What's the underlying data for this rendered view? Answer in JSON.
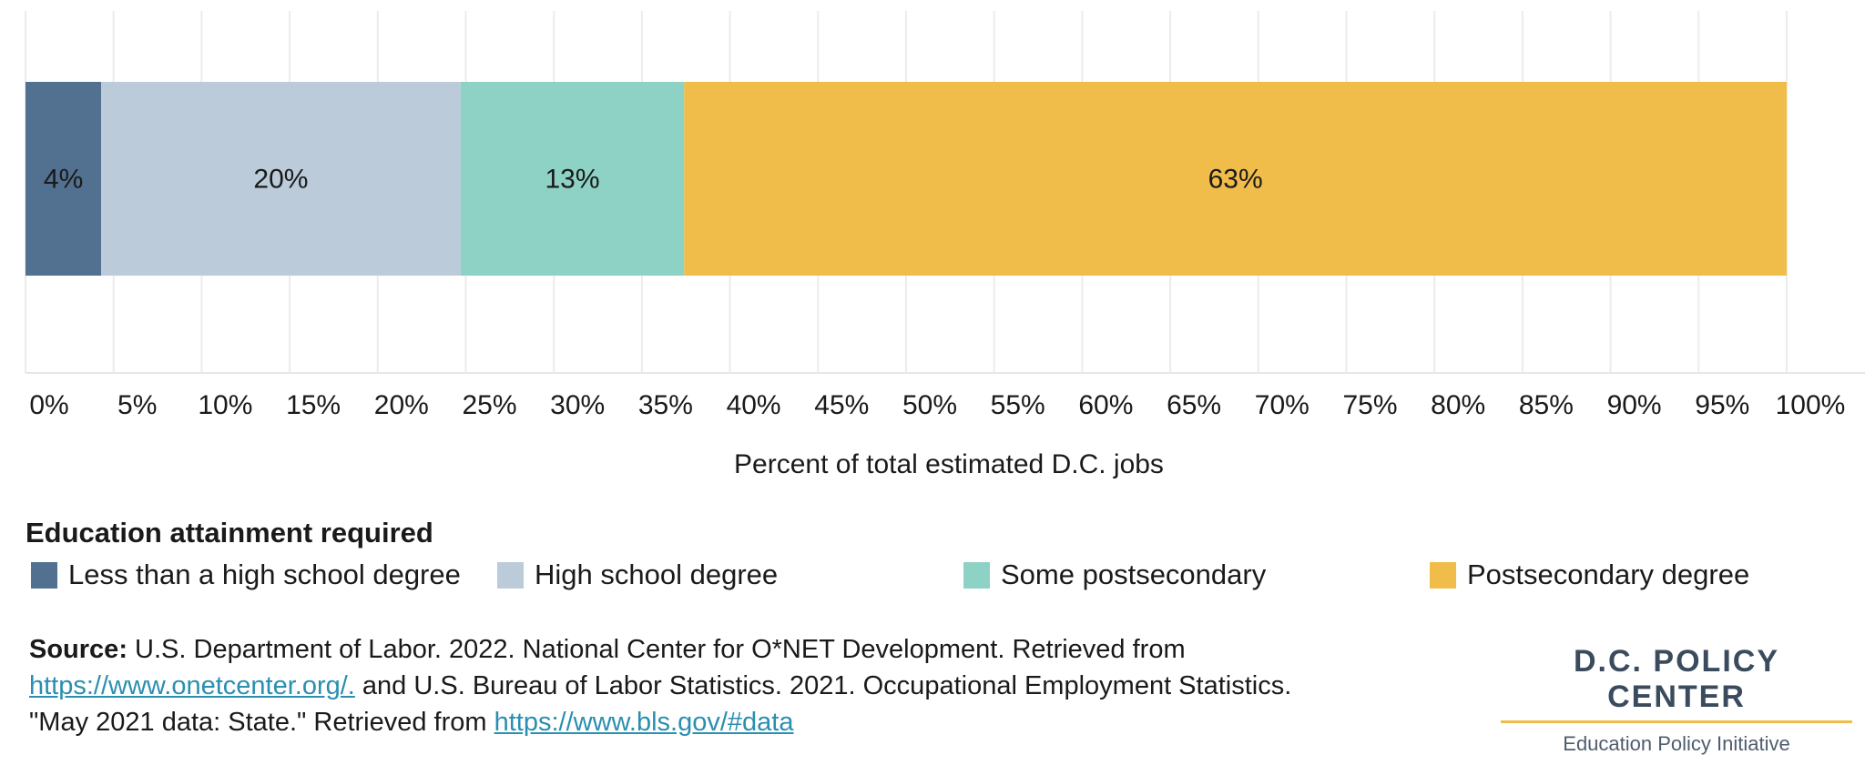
{
  "chart_data": {
    "type": "bar",
    "orientation": "horizontal",
    "stacked": true,
    "categories": [
      ""
    ],
    "series": [
      {
        "name": "Less than a high school degree",
        "values": [
          4.3
        ],
        "label": "4%",
        "color": "#52708f"
      },
      {
        "name": "High school degree",
        "values": [
          20.4
        ],
        "label": "20%",
        "color": "#bccbda"
      },
      {
        "name": "Some postsecondary",
        "values": [
          12.7
        ],
        "label": "13%",
        "color": "#8ed1c5"
      },
      {
        "name": "Postsecondary degree",
        "values": [
          62.6
        ],
        "label": "63%",
        "color": "#f0bd4a"
      }
    ],
    "xlabel": "Percent of total estimated D.C. jobs",
    "xlim": [
      0,
      100
    ],
    "xticks": [
      0,
      5,
      10,
      15,
      20,
      25,
      30,
      35,
      40,
      45,
      50,
      55,
      60,
      65,
      70,
      75,
      80,
      85,
      90,
      95,
      100
    ],
    "xtick_labels": [
      "0%",
      "5%",
      "10%",
      "15%",
      "20%",
      "25%",
      "30%",
      "35%",
      "40%",
      "45%",
      "50%",
      "55%",
      "60%",
      "65%",
      "70%",
      "75%",
      "80%",
      "85%",
      "90%",
      "95%",
      "100%"
    ],
    "grid": true,
    "legend": {
      "title": "Education attainment required",
      "position": "bottom"
    }
  },
  "source": {
    "label": "Source:",
    "text1": " U.S. Department of Labor. 2022. National Center for O*NET Development. Retrieved from",
    "link1": "https://www.onetcenter.org/.",
    "text2": " and U.S. Bureau of Labor Statistics. 2021. Occupational Employment Statistics.",
    "text3": "\"May 2021 data: State.\" Retrieved from ",
    "link2": "https://www.bls.gov/#data"
  },
  "logo": {
    "name": "D.C. POLICY CENTER",
    "subtitle": "Education Policy Initiative"
  }
}
